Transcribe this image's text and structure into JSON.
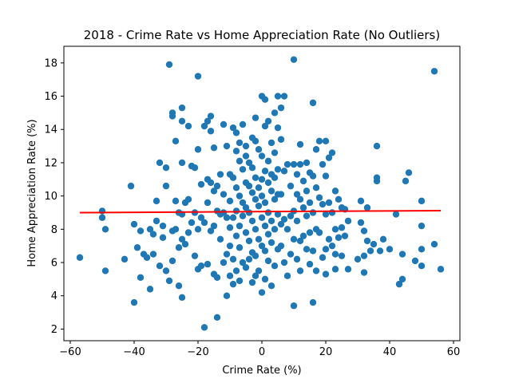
{
  "chart_data": {
    "type": "scatter",
    "title": "2018 -  Crime Rate vs Home Appreciation Rate (No Outliers)",
    "xlabel": "Crime Rate (%)",
    "ylabel": "Home Appreciation Rate (%)",
    "xlim": [
      -62,
      62
    ],
    "ylim": [
      1.3,
      19
    ],
    "xticks": [
      -60,
      -40,
      -20,
      0,
      20,
      40,
      60
    ],
    "yticks": [
      2,
      4,
      6,
      8,
      10,
      12,
      14,
      16,
      18
    ],
    "grid": false,
    "colors": {
      "points": "#1f77b4",
      "regression": "#ff0000"
    },
    "regression": {
      "x": [
        -57,
        56
      ],
      "y": [
        9.0,
        9.12
      ]
    },
    "points": [
      [
        -57,
        6.3
      ],
      [
        -50,
        9.1
      ],
      [
        -50,
        8.7
      ],
      [
        -49,
        5.5
      ],
      [
        -49,
        8.0
      ],
      [
        -43,
        6.2
      ],
      [
        -41,
        10.6
      ],
      [
        -40,
        3.6
      ],
      [
        -40,
        8.3
      ],
      [
        -39,
        6.9
      ],
      [
        -38,
        7.9
      ],
      [
        -38,
        5.1
      ],
      [
        -37,
        6.5
      ],
      [
        -36,
        6.3
      ],
      [
        -35,
        4.4
      ],
      [
        -35,
        8.0
      ],
      [
        -34,
        7.7
      ],
      [
        -34,
        6.5
      ],
      [
        -33,
        9.7
      ],
      [
        -33,
        8.5
      ],
      [
        -32,
        12.0
      ],
      [
        -32,
        5.8
      ],
      [
        -31,
        7.5
      ],
      [
        -31,
        8.2
      ],
      [
        -30,
        11.7
      ],
      [
        -30,
        10.6
      ],
      [
        -30,
        5.5
      ],
      [
        -29,
        17.9
      ],
      [
        -29,
        4.9
      ],
      [
        -28,
        15.0
      ],
      [
        -28,
        14.8
      ],
      [
        -28,
        6.1
      ],
      [
        -28,
        7.9
      ],
      [
        -27,
        13.3
      ],
      [
        -27,
        9.7
      ],
      [
        -27,
        8.0
      ],
      [
        -26,
        4.6
      ],
      [
        -26,
        6.9
      ],
      [
        -26,
        9.0
      ],
      [
        -25,
        15.3
      ],
      [
        -25,
        14.5
      ],
      [
        -25,
        12.0
      ],
      [
        -25,
        8.9
      ],
      [
        -25,
        7.4
      ],
      [
        -25,
        3.9
      ],
      [
        -24,
        9.6
      ],
      [
        -24,
        7.1
      ],
      [
        -23,
        14.2
      ],
      [
        -23,
        9.8
      ],
      [
        -23,
        7.8
      ],
      [
        -22,
        11.8
      ],
      [
        -22,
        8.4
      ],
      [
        -21,
        11.7
      ],
      [
        -21,
        9.0
      ],
      [
        -21,
        6.4
      ],
      [
        -20,
        17.2
      ],
      [
        -20,
        12.8
      ],
      [
        -20,
        8.0
      ],
      [
        -20,
        5.6
      ],
      [
        -19,
        10.7
      ],
      [
        -19,
        8.7
      ],
      [
        -19,
        5.8
      ],
      [
        -18,
        14.2
      ],
      [
        -18,
        2.1
      ],
      [
        -18,
        8.4
      ],
      [
        -17,
        14.5
      ],
      [
        -17,
        11.0
      ],
      [
        -17,
        9.6
      ],
      [
        -17,
        5.9
      ],
      [
        -16,
        14.8
      ],
      [
        -16,
        13.9
      ],
      [
        -16,
        10.8
      ],
      [
        -16,
        7.9
      ],
      [
        -15,
        12.9
      ],
      [
        -15,
        10.3
      ],
      [
        -15,
        8.2
      ],
      [
        -15,
        5.3
      ],
      [
        -14,
        10.6
      ],
      [
        -14,
        9.1
      ],
      [
        -14,
        5.1
      ],
      [
        -14,
        2.7
      ],
      [
        -13,
        11.3
      ],
      [
        -13,
        8.9
      ],
      [
        -13,
        7.4
      ],
      [
        -12,
        14.3
      ],
      [
        -12,
        10.1
      ],
      [
        -12,
        9.0
      ],
      [
        -12,
        6.0
      ],
      [
        -11,
        13.0
      ],
      [
        -11,
        8.7
      ],
      [
        -11,
        6.5
      ],
      [
        -11,
        4.0
      ],
      [
        -10,
        11.3
      ],
      [
        -10,
        9.7
      ],
      [
        -10,
        8.1
      ],
      [
        -10,
        7.0
      ],
      [
        -10,
        5.2
      ],
      [
        -9,
        14.1
      ],
      [
        -9,
        11.1
      ],
      [
        -9,
        8.7
      ],
      [
        -9,
        6.2
      ],
      [
        -9,
        4.7
      ],
      [
        -8,
        13.8
      ],
      [
        -8,
        12.7
      ],
      [
        -8,
        10.5
      ],
      [
        -8,
        9.1
      ],
      [
        -8,
        7.6
      ],
      [
        -8,
        5.5
      ],
      [
        -7,
        13.2
      ],
      [
        -7,
        12.1
      ],
      [
        -7,
        10.0
      ],
      [
        -7,
        8.2
      ],
      [
        -7,
        6.9
      ],
      [
        -7,
        4.9
      ],
      [
        -6,
        14.3
      ],
      [
        -6,
        11.6
      ],
      [
        -6,
        9.6
      ],
      [
        -6,
        8.8
      ],
      [
        -6,
        6.0
      ],
      [
        -5,
        13.0
      ],
      [
        -5,
        12.4
      ],
      [
        -5,
        10.8
      ],
      [
        -5,
        9.3
      ],
      [
        -5,
        7.8
      ],
      [
        -5,
        5.7
      ],
      [
        -4,
        12.0
      ],
      [
        -4,
        10.6
      ],
      [
        -4,
        9.0
      ],
      [
        -4,
        7.3
      ],
      [
        -4,
        6.2
      ],
      [
        -3,
        13.5
      ],
      [
        -3,
        11.7
      ],
      [
        -3,
        10.2
      ],
      [
        -3,
        8.5
      ],
      [
        -3,
        6.6
      ],
      [
        -3,
        4.8
      ],
      [
        -2,
        14.7
      ],
      [
        -2,
        13.3
      ],
      [
        -2,
        11.1
      ],
      [
        -2,
        9.8
      ],
      [
        -2,
        8.0
      ],
      [
        -2,
        6.4
      ],
      [
        -2,
        5.2
      ],
      [
        -1,
        12.8
      ],
      [
        -1,
        10.5
      ],
      [
        -1,
        9.4
      ],
      [
        -1,
        7.4
      ],
      [
        -1,
        5.5
      ],
      [
        0,
        16.0
      ],
      [
        0,
        12.4
      ],
      [
        0,
        11.0
      ],
      [
        0,
        10.0
      ],
      [
        0,
        8.7
      ],
      [
        0,
        7.0
      ],
      [
        0,
        4.2
      ],
      [
        1,
        15.8
      ],
      [
        1,
        14.2
      ],
      [
        1,
        11.5
      ],
      [
        1,
        9.6
      ],
      [
        1,
        8.2
      ],
      [
        1,
        6.7
      ],
      [
        1,
        5.0
      ],
      [
        2,
        14.5
      ],
      [
        2,
        12.1
      ],
      [
        2,
        10.8
      ],
      [
        2,
        9.0
      ],
      [
        2,
        7.7
      ],
      [
        2,
        6.1
      ],
      [
        3,
        13.2
      ],
      [
        3,
        11.3
      ],
      [
        3,
        10.3
      ],
      [
        3,
        8.5
      ],
      [
        3,
        7.2
      ],
      [
        3,
        4.6
      ],
      [
        4,
        15.0
      ],
      [
        4,
        12.6
      ],
      [
        4,
        11.1
      ],
      [
        4,
        9.8
      ],
      [
        4,
        8.0
      ],
      [
        4,
        5.8
      ],
      [
        5,
        16.0
      ],
      [
        5,
        14.1
      ],
      [
        5,
        11.6
      ],
      [
        5,
        10.1
      ],
      [
        5,
        8.9
      ],
      [
        5,
        6.8
      ],
      [
        6,
        15.3
      ],
      [
        6,
        13.4
      ],
      [
        6,
        10.1
      ],
      [
        6,
        8.3
      ],
      [
        6,
        7.0
      ],
      [
        7,
        16.0
      ],
      [
        7,
        11.5
      ],
      [
        7,
        8.6
      ],
      [
        7,
        6.0
      ],
      [
        8,
        11.9
      ],
      [
        8,
        8.0
      ],
      [
        8,
        5.2
      ],
      [
        9,
        10.6
      ],
      [
        9,
        8.8
      ],
      [
        9,
        6.5
      ],
      [
        10,
        18.2
      ],
      [
        10,
        11.9
      ],
      [
        10,
        9.1
      ],
      [
        10,
        7.4
      ],
      [
        10,
        3.4
      ],
      [
        11,
        11.3
      ],
      [
        11,
        10.1
      ],
      [
        11,
        8.5
      ],
      [
        11,
        6.2
      ],
      [
        12,
        13.1
      ],
      [
        12,
        11.9
      ],
      [
        12,
        9.8
      ],
      [
        12,
        7.3
      ],
      [
        12,
        5.5
      ],
      [
        13,
        10.9
      ],
      [
        13,
        9.3
      ],
      [
        13,
        7.6
      ],
      [
        14,
        12.0
      ],
      [
        14,
        10.3
      ],
      [
        14,
        8.8
      ],
      [
        14,
        6.8
      ],
      [
        15,
        11.4
      ],
      [
        15,
        9.6
      ],
      [
        15,
        7.8
      ],
      [
        15,
        5.9
      ],
      [
        16,
        15.6
      ],
      [
        16,
        11.2
      ],
      [
        16,
        9.0
      ],
      [
        16,
        6.7
      ],
      [
        16,
        3.6
      ],
      [
        17,
        12.8
      ],
      [
        17,
        10.5
      ],
      [
        17,
        8.0
      ],
      [
        17,
        5.5
      ],
      [
        18,
        13.3
      ],
      [
        18,
        9.9
      ],
      [
        18,
        7.8
      ],
      [
        19,
        11.9
      ],
      [
        19,
        9.5
      ],
      [
        19,
        6.3
      ],
      [
        20,
        13.3
      ],
      [
        20,
        11.2
      ],
      [
        20,
        8.9
      ],
      [
        20,
        6.8
      ],
      [
        20,
        5.3
      ],
      [
        21,
        12.3
      ],
      [
        21,
        9.6
      ],
      [
        21,
        7.4
      ],
      [
        22,
        12.6
      ],
      [
        22,
        9.0
      ],
      [
        22,
        7.0
      ],
      [
        23,
        10.3
      ],
      [
        23,
        8.0
      ],
      [
        23,
        6.5
      ],
      [
        23,
        5.6
      ],
      [
        24,
        9.8
      ],
      [
        24,
        7.5
      ],
      [
        25,
        9.3
      ],
      [
        25,
        8.1
      ],
      [
        25,
        6.4
      ],
      [
        26,
        9.2
      ],
      [
        26,
        7.6
      ],
      [
        27,
        8.5
      ],
      [
        27,
        5.6
      ],
      [
        30,
        6.2
      ],
      [
        31,
        9.7
      ],
      [
        31,
        8.4
      ],
      [
        32,
        7.9
      ],
      [
        32,
        6.4
      ],
      [
        32,
        5.4
      ],
      [
        33,
        9.3
      ],
      [
        33,
        7.3
      ],
      [
        34,
        6.7
      ],
      [
        35,
        7.1
      ],
      [
        36,
        13.0
      ],
      [
        36,
        10.9
      ],
      [
        36,
        11.1
      ],
      [
        37,
        6.7
      ],
      [
        38,
        7.4
      ],
      [
        40,
        6.8
      ],
      [
        42,
        8.9
      ],
      [
        43,
        4.7
      ],
      [
        44,
        5.0
      ],
      [
        44,
        6.5
      ],
      [
        45,
        10.9
      ],
      [
        46,
        11.4
      ],
      [
        48,
        6.1
      ],
      [
        50,
        9.7
      ],
      [
        50,
        8.2
      ],
      [
        50,
        6.8
      ],
      [
        50,
        5.8
      ],
      [
        54,
        17.5
      ],
      [
        54,
        7.1
      ],
      [
        56,
        5.6
      ]
    ]
  }
}
